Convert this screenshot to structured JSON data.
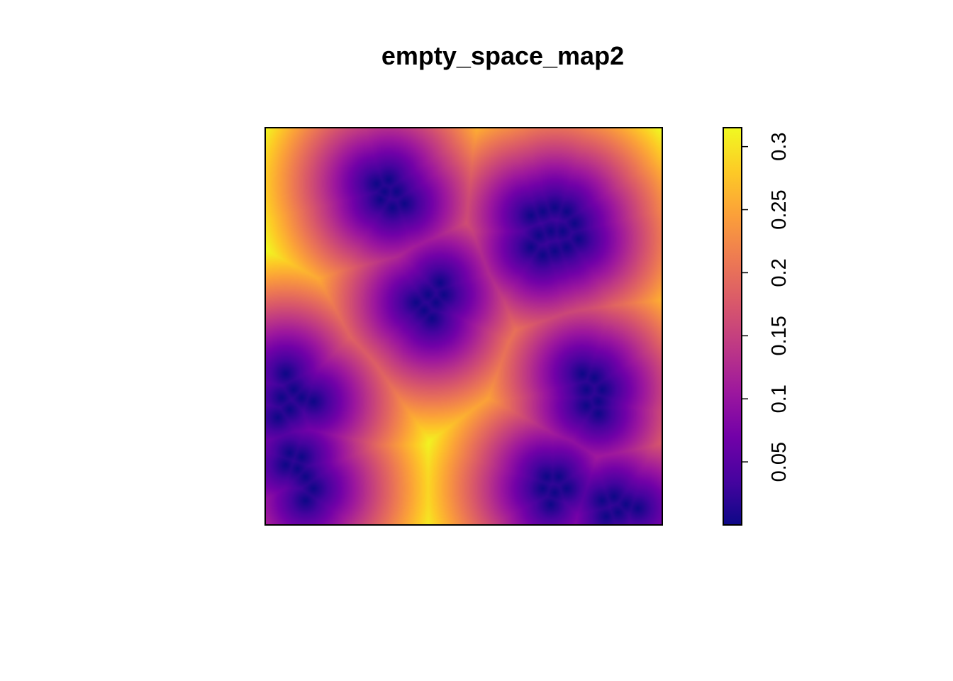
{
  "title": "empty_space_map2",
  "chart_data": {
    "type": "heatmap",
    "title": "empty_space_map2",
    "xlabel": "",
    "ylabel": "",
    "axes_shown": false,
    "grid": false,
    "legend_placement": "right",
    "colormap": "plasma",
    "colors": [
      "#0d0887",
      "#46039f",
      "#7201a8",
      "#9c179e",
      "#bd3786",
      "#d8576b",
      "#ed7953",
      "#fb9f3a",
      "#fdca26",
      "#f0f921"
    ],
    "colorbar": {
      "range": [
        0.0,
        0.315
      ],
      "ticks": [
        0.05,
        0.1,
        0.15,
        0.2,
        0.25,
        0.3
      ],
      "tick_labels": [
        "0.05",
        "0.1",
        "0.15",
        "0.2",
        "0.25",
        "0.3"
      ]
    },
    "cluster_points": [
      {
        "cluster": 1,
        "x": 0.28,
        "y": 0.86
      },
      {
        "cluster": 1,
        "x": 0.31,
        "y": 0.87
      },
      {
        "cluster": 1,
        "x": 0.33,
        "y": 0.84
      },
      {
        "cluster": 1,
        "x": 0.29,
        "y": 0.82
      },
      {
        "cluster": 1,
        "x": 0.32,
        "y": 0.8
      },
      {
        "cluster": 1,
        "x": 0.35,
        "y": 0.81
      },
      {
        "cluster": 1,
        "x": 0.3,
        "y": 0.84
      },
      {
        "cluster": 2,
        "x": 0.67,
        "y": 0.78
      },
      {
        "cluster": 2,
        "x": 0.7,
        "y": 0.79
      },
      {
        "cluster": 2,
        "x": 0.73,
        "y": 0.8
      },
      {
        "cluster": 2,
        "x": 0.76,
        "y": 0.79
      },
      {
        "cluster": 2,
        "x": 0.78,
        "y": 0.76
      },
      {
        "cluster": 2,
        "x": 0.75,
        "y": 0.74
      },
      {
        "cluster": 2,
        "x": 0.72,
        "y": 0.74
      },
      {
        "cluster": 2,
        "x": 0.69,
        "y": 0.73
      },
      {
        "cluster": 2,
        "x": 0.67,
        "y": 0.7
      },
      {
        "cluster": 2,
        "x": 0.7,
        "y": 0.68
      },
      {
        "cluster": 2,
        "x": 0.73,
        "y": 0.69
      },
      {
        "cluster": 2,
        "x": 0.76,
        "y": 0.7
      },
      {
        "cluster": 2,
        "x": 0.79,
        "y": 0.72
      },
      {
        "cluster": 3,
        "x": 0.38,
        "y": 0.56
      },
      {
        "cluster": 3,
        "x": 0.41,
        "y": 0.58
      },
      {
        "cluster": 3,
        "x": 0.44,
        "y": 0.61
      },
      {
        "cluster": 3,
        "x": 0.4,
        "y": 0.54
      },
      {
        "cluster": 3,
        "x": 0.43,
        "y": 0.56
      },
      {
        "cluster": 3,
        "x": 0.45,
        "y": 0.58
      },
      {
        "cluster": 3,
        "x": 0.42,
        "y": 0.52
      },
      {
        "cluster": 4,
        "x": 0.05,
        "y": 0.38
      },
      {
        "cluster": 4,
        "x": 0.07,
        "y": 0.34
      },
      {
        "cluster": 4,
        "x": 0.04,
        "y": 0.32
      },
      {
        "cluster": 4,
        "x": 0.09,
        "y": 0.32
      },
      {
        "cluster": 4,
        "x": 0.12,
        "y": 0.31
      },
      {
        "cluster": 4,
        "x": 0.06,
        "y": 0.29
      },
      {
        "cluster": 4,
        "x": 0.03,
        "y": 0.27
      },
      {
        "cluster": 5,
        "x": 0.06,
        "y": 0.18
      },
      {
        "cluster": 5,
        "x": 0.09,
        "y": 0.17
      },
      {
        "cluster": 5,
        "x": 0.05,
        "y": 0.15
      },
      {
        "cluster": 5,
        "x": 0.08,
        "y": 0.14
      },
      {
        "cluster": 5,
        "x": 0.1,
        "y": 0.12
      },
      {
        "cluster": 5,
        "x": 0.12,
        "y": 0.09
      },
      {
        "cluster": 5,
        "x": 0.1,
        "y": 0.06
      },
      {
        "cluster": 6,
        "x": 0.8,
        "y": 0.38
      },
      {
        "cluster": 6,
        "x": 0.83,
        "y": 0.37
      },
      {
        "cluster": 6,
        "x": 0.85,
        "y": 0.34
      },
      {
        "cluster": 6,
        "x": 0.81,
        "y": 0.34
      },
      {
        "cluster": 6,
        "x": 0.84,
        "y": 0.31
      },
      {
        "cluster": 6,
        "x": 0.81,
        "y": 0.3
      },
      {
        "cluster": 6,
        "x": 0.84,
        "y": 0.28
      },
      {
        "cluster": 7,
        "x": 0.71,
        "y": 0.12
      },
      {
        "cluster": 7,
        "x": 0.74,
        "y": 0.12
      },
      {
        "cluster": 7,
        "x": 0.7,
        "y": 0.09
      },
      {
        "cluster": 7,
        "x": 0.73,
        "y": 0.08
      },
      {
        "cluster": 7,
        "x": 0.76,
        "y": 0.09
      },
      {
        "cluster": 7,
        "x": 0.72,
        "y": 0.05
      },
      {
        "cluster": 8,
        "x": 0.85,
        "y": 0.06
      },
      {
        "cluster": 8,
        "x": 0.88,
        "y": 0.07
      },
      {
        "cluster": 8,
        "x": 0.91,
        "y": 0.05
      },
      {
        "cluster": 8,
        "x": 0.94,
        "y": 0.04
      },
      {
        "cluster": 8,
        "x": 0.89,
        "y": 0.03
      },
      {
        "cluster": 8,
        "x": 0.86,
        "y": 0.02
      }
    ]
  }
}
